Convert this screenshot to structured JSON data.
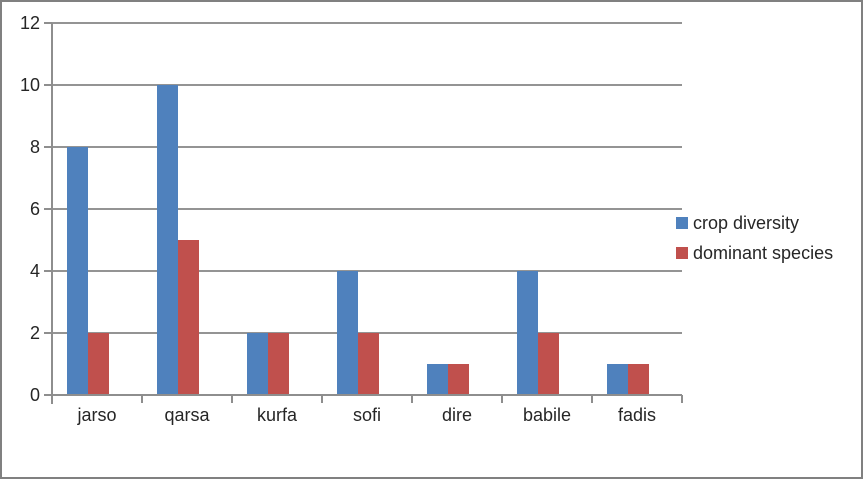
{
  "colors": {
    "background": "#ffffff",
    "border": "#808080",
    "axis": "#8e8e8e",
    "gridline": "#949494",
    "text": "#262626"
  },
  "chart_data": {
    "type": "bar",
    "title": "",
    "xlabel": "",
    "ylabel": "",
    "categories": [
      "jarso",
      "qarsa",
      "kurfa",
      "sofi",
      "dire",
      "babile",
      "fadis"
    ],
    "series": [
      {
        "name": "crop diversity",
        "color": "#4f81bd",
        "values": [
          8,
          10,
          2,
          4,
          1,
          4,
          1
        ]
      },
      {
        "name": "dominant species",
        "color": "#c0504d",
        "values": [
          2,
          5,
          2,
          2,
          1,
          2,
          1
        ]
      }
    ],
    "ylim": [
      0,
      12
    ],
    "yticks": [
      0,
      2,
      4,
      6,
      8,
      10,
      12
    ],
    "grid": true,
    "legend_position": "right"
  }
}
